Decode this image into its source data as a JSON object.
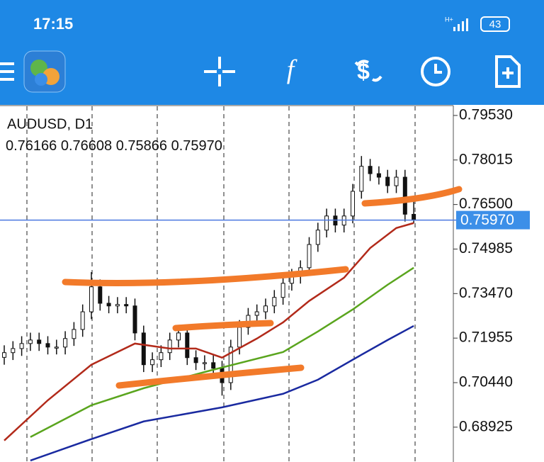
{
  "status_bar": {
    "time": "17:15",
    "battery": "43"
  },
  "chart_data": {
    "type": "candlestick",
    "title": "AUDUSD, D1",
    "ohlc_labels": [
      "0.76166",
      "0.76608",
      "0.75866",
      "0.75970"
    ],
    "ylim": [
      0.6774,
      0.7989
    ],
    "yticks": [
      {
        "value": 0.7953,
        "label": "0.79530"
      },
      0.78015,
      {
        "value": 0.765,
        "label": "0.76500"
      },
      0.74985,
      {
        "value": 0.7347,
        "label": "0.73470"
      },
      0.71955,
      {
        "value": 0.7044,
        "label": "0.70440"
      },
      0.68925
    ],
    "current_price": {
      "value": 0.7597,
      "label": "0.75970"
    },
    "candles": {
      "open": [
        0.713,
        0.7146,
        0.716,
        0.7177,
        0.7189,
        0.7177,
        0.7165,
        0.7165,
        0.7194,
        0.7225,
        0.7285,
        0.737,
        0.7314,
        0.7305,
        0.731,
        0.7305,
        0.7213,
        0.7105,
        0.7122,
        0.7146,
        0.7189,
        0.7213,
        0.7129,
        0.7112,
        0.7112,
        0.7093,
        0.7044,
        0.7165,
        0.7232,
        0.7273,
        0.7285,
        0.7305,
        0.7334,
        0.7382,
        0.7406,
        0.7435,
        0.7514,
        0.7563,
        0.7611,
        0.758,
        0.7611,
        0.7695,
        0.778,
        0.7755,
        0.7743,
        0.7714,
        0.7743,
        0.76166
      ],
      "high": [
        0.7171,
        0.7185,
        0.7202,
        0.7214,
        0.7214,
        0.7202,
        0.719,
        0.7219,
        0.725,
        0.731,
        0.742,
        0.7395,
        0.7339,
        0.7335,
        0.7335,
        0.733,
        0.7238,
        0.7147,
        0.7171,
        0.7214,
        0.7238,
        0.7238,
        0.7154,
        0.7137,
        0.7137,
        0.7118,
        0.719,
        0.7257,
        0.7298,
        0.731,
        0.733,
        0.7359,
        0.7407,
        0.7431,
        0.746,
        0.7539,
        0.7588,
        0.7636,
        0.7636,
        0.7636,
        0.772,
        0.7815,
        0.7805,
        0.778,
        0.7768,
        0.7768,
        0.7768,
        0.76608
      ],
      "low": [
        0.7105,
        0.7121,
        0.7135,
        0.7152,
        0.7152,
        0.714,
        0.714,
        0.714,
        0.7169,
        0.72,
        0.726,
        0.7289,
        0.728,
        0.728,
        0.728,
        0.7188,
        0.708,
        0.708,
        0.7097,
        0.7121,
        0.7164,
        0.7104,
        0.7087,
        0.7087,
        0.7068,
        0.7,
        0.7019,
        0.714,
        0.7207,
        0.7248,
        0.726,
        0.728,
        0.7309,
        0.7357,
        0.7381,
        0.741,
        0.7489,
        0.7538,
        0.7555,
        0.7555,
        0.7586,
        0.767,
        0.773,
        0.7718,
        0.7689,
        0.7689,
        0.7592,
        0.75866
      ],
      "close": [
        0.7146,
        0.716,
        0.7177,
        0.7189,
        0.7177,
        0.7165,
        0.7165,
        0.7194,
        0.7225,
        0.7285,
        0.737,
        0.7314,
        0.7305,
        0.731,
        0.7305,
        0.7213,
        0.7105,
        0.7122,
        0.7146,
        0.7189,
        0.7213,
        0.7129,
        0.7112,
        0.7112,
        0.7093,
        0.7044,
        0.7165,
        0.7232,
        0.7273,
        0.7285,
        0.7305,
        0.7334,
        0.7382,
        0.7406,
        0.7435,
        0.7514,
        0.7563,
        0.7611,
        0.758,
        0.7611,
        0.7695,
        0.778,
        0.7755,
        0.7743,
        0.7714,
        0.7743,
        0.7617,
        0.7597
      ]
    },
    "series": [
      {
        "color": "#b22a1a",
        "x": [
          0,
          5,
          10,
          15,
          19,
          22,
          25,
          29,
          32,
          35,
          39,
          42,
          45,
          47
        ],
        "values": [
          0.6847,
          0.6984,
          0.7105,
          0.7177,
          0.716,
          0.716,
          0.7129,
          0.7194,
          0.7249,
          0.7322,
          0.7401,
          0.7502,
          0.757,
          0.7587
        ]
      },
      {
        "color": "#5aa51e",
        "x": [
          3,
          10,
          16,
          24,
          32,
          36,
          40,
          44,
          47
        ],
        "values": [
          0.6859,
          0.6967,
          0.7025,
          0.7088,
          0.7148,
          0.7218,
          0.7293,
          0.7377,
          0.7435
        ]
      },
      {
        "color": "#1a2aa0",
        "x": [
          3,
          10,
          16,
          25,
          32,
          36,
          40,
          44,
          47
        ],
        "values": [
          0.6779,
          0.6852,
          0.6912,
          0.696,
          0.7006,
          0.7054,
          0.7122,
          0.7189,
          0.7237
        ]
      }
    ]
  }
}
